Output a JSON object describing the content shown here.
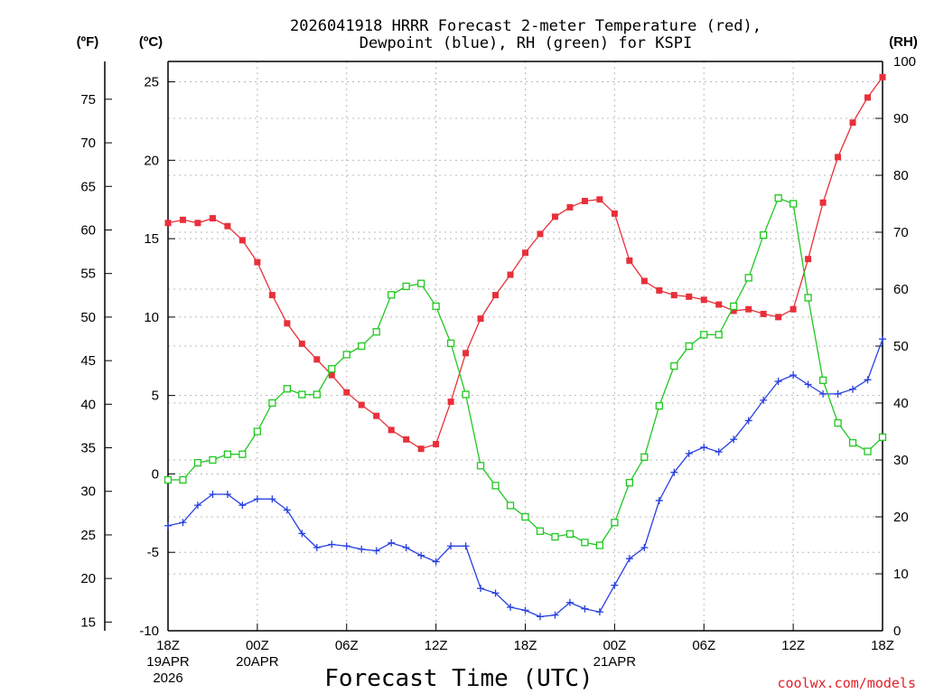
{
  "chart_data": {
    "type": "line",
    "title_line1": "2026041918 HRRR Forecast 2-meter Temperature (red),",
    "title_line2": "Dewpoint (blue), RH (green) for KSPI",
    "xlabel": "Forecast Time (UTC)",
    "credit": "coolwx.com/models",
    "left_outer_unit": "(ºF)",
    "left_inner_unit": "(ºC)",
    "right_unit": "(RH)",
    "x_range_hours": [
      0,
      48
    ],
    "c_range": [
      -10,
      26.3
    ],
    "rh_range": [
      0,
      100
    ],
    "f_ticks": [
      15,
      20,
      25,
      30,
      35,
      40,
      45,
      50,
      55,
      60,
      65,
      70,
      75
    ],
    "c_ticks": [
      -10,
      -5,
      0,
      5,
      10,
      15,
      20,
      25
    ],
    "rh_ticks": [
      0,
      10,
      20,
      30,
      40,
      50,
      60,
      70,
      80,
      90,
      100
    ],
    "x_ticks": [
      {
        "hour": 0,
        "lines": [
          "18Z",
          "19APR",
          "2026"
        ]
      },
      {
        "hour": 6,
        "lines": [
          "00Z",
          "20APR"
        ]
      },
      {
        "hour": 12,
        "lines": [
          "06Z"
        ]
      },
      {
        "hour": 18,
        "lines": [
          "12Z"
        ]
      },
      {
        "hour": 24,
        "lines": [
          "18Z"
        ]
      },
      {
        "hour": 30,
        "lines": [
          "00Z",
          "21APR"
        ]
      },
      {
        "hour": 36,
        "lines": [
          "06Z"
        ]
      },
      {
        "hour": 42,
        "lines": [
          "12Z"
        ]
      },
      {
        "hour": 48,
        "lines": [
          "18Z"
        ]
      }
    ],
    "grid": true,
    "series": [
      {
        "name": "Temperature",
        "unit": "C",
        "color": "#e8303a",
        "marker": "filled-square",
        "values": [
          16.0,
          16.2,
          16.0,
          16.3,
          15.8,
          14.9,
          13.5,
          11.4,
          9.6,
          8.3,
          7.3,
          6.3,
          5.2,
          4.4,
          3.7,
          2.8,
          2.2,
          1.6,
          1.9,
          4.6,
          7.7,
          9.9,
          11.4,
          12.7,
          14.1,
          15.3,
          16.4,
          17.0,
          17.4,
          17.5,
          16.6,
          13.6,
          12.3,
          11.7,
          11.4,
          11.3,
          11.1,
          10.8,
          10.4,
          10.5,
          10.2,
          10.0,
          10.5,
          13.7,
          17.3,
          20.2,
          22.4,
          24.0,
          25.3
        ]
      },
      {
        "name": "Dewpoint",
        "unit": "C",
        "color": "#2840e0",
        "marker": "plus",
        "values": [
          -3.3,
          -3.1,
          -2.0,
          -1.3,
          -1.3,
          -2.0,
          -1.6,
          -1.6,
          -2.3,
          -3.8,
          -4.7,
          -4.5,
          -4.6,
          -4.8,
          -4.9,
          -4.4,
          -4.7,
          -5.2,
          -5.6,
          -4.6,
          -4.6,
          -7.3,
          -7.6,
          -8.5,
          -8.7,
          -9.1,
          -9.0,
          -8.2,
          -8.6,
          -8.8,
          -7.1,
          -5.4,
          -4.7,
          -1.7,
          0.1,
          1.3,
          1.7,
          1.4,
          2.2,
          3.4,
          4.7,
          5.9,
          6.3,
          5.7,
          5.1,
          5.1,
          5.4,
          6.0,
          8.6
        ]
      },
      {
        "name": "RH",
        "unit": "%",
        "color": "#20c820",
        "marker": "open-square",
        "values": [
          26.5,
          26.5,
          29.5,
          30.0,
          31.0,
          31.0,
          35.0,
          40.0,
          42.5,
          41.5,
          41.5,
          46.0,
          48.5,
          50.0,
          52.5,
          59.0,
          60.5,
          61.0,
          57.0,
          50.5,
          41.5,
          29.0,
          25.5,
          22.0,
          20.0,
          17.5,
          16.5,
          17.0,
          15.5,
          15.0,
          19.0,
          26.0,
          30.5,
          39.5,
          46.5,
          50.0,
          52.0,
          52.0,
          57.0,
          62.0,
          69.5,
          76.0,
          75.0,
          58.5,
          44.0,
          36.5,
          33.0,
          31.5,
          34.0
        ]
      }
    ]
  }
}
